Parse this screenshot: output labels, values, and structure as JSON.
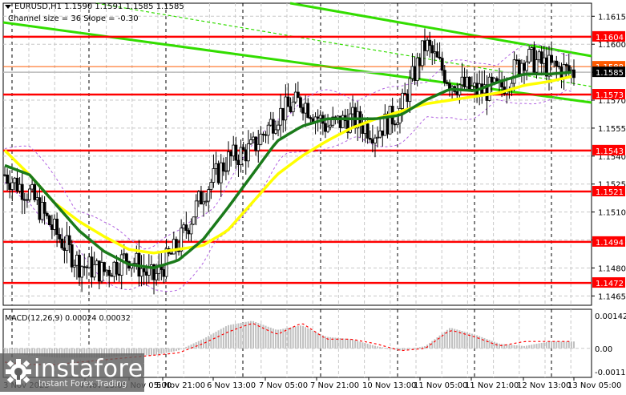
{
  "header": {
    "symbol_line": "EURUSD,H1  1.1590 1.1591 1.1585 1.1585",
    "channel_line": "Channel size = 36 Slope = -0.30"
  },
  "macd": {
    "label": "MACD(12,26,9) 0.00024 0.00032",
    "axis": [
      "0.00142",
      "0.00",
      "-0.00119"
    ]
  },
  "watermark": {
    "brand": "instaforex",
    "tagline": "Instant Forex Trading"
  },
  "colors": {
    "level": "#ff0000",
    "channel": "#33dd00",
    "ma_fast": "#1a7a1a",
    "ma_slow": "#ffff00",
    "envelope": "#b060e0",
    "macd_hist": "#c0c0c0",
    "macd_signal": "#ff0000",
    "current_price_bg": "#000000",
    "ask_line": "#ff5a00"
  },
  "chart_data": {
    "type": "candlestick",
    "title": "EURUSD,H1",
    "ohlc_header": {
      "open": 1.159,
      "high": 1.1591,
      "low": 1.1585,
      "close": 1.1585
    },
    "annotation": "Channel size = 36 Slope = -0.30",
    "xlabel": "",
    "ylabel": "",
    "ylim": [
      1.146,
      1.1622
    ],
    "x_tick_labels": [
      "3 Nov 2025",
      "4 Nov 13:00",
      "5 Nov 05:00",
      "5 Nov 21:00",
      "6 Nov 13:00",
      "7 Nov 05:00",
      "7 Nov 21:00",
      "10 Nov 13:00",
      "11 Nov 05:00",
      "11 Nov 21:00",
      "12 Nov 13:00",
      "13 Nov 05:00"
    ],
    "y_tick_labels": [
      "1.1615",
      "1.1600",
      "1.1585",
      "1.1570",
      "1.1555",
      "1.1540",
      "1.1525",
      "1.1510",
      "1.1495",
      "1.1480",
      "1.1465"
    ],
    "horizontal_levels": [
      1.1604,
      1.1573,
      1.1543,
      1.1521,
      1.1494,
      1.1472
    ],
    "price_tags": [
      {
        "label": "1.1604",
        "value": 1.1604,
        "color": "#ff0000"
      },
      {
        "label": "1.1588",
        "value": 1.1588,
        "color": "#ff5a00"
      },
      {
        "label": "1.1585",
        "value": 1.1585,
        "color": "#000000"
      },
      {
        "label": "1.1573",
        "value": 1.1573,
        "color": "#ff0000"
      },
      {
        "label": "1.1543",
        "value": 1.1543,
        "color": "#ff0000"
      },
      {
        "label": "1.1521",
        "value": 1.1521,
        "color": "#ff0000"
      },
      {
        "label": "1.1494",
        "value": 1.1494,
        "color": "#ff0000"
      },
      {
        "label": "1.1472",
        "value": 1.1472,
        "color": "#ff0000"
      }
    ],
    "current_price": 1.1585,
    "ask_price": 1.1588,
    "series": [
      {
        "name": "Close (approx, every ~12 bars)",
        "values": [
          1.153,
          1.152,
          1.15,
          1.1482,
          1.1478,
          1.1486,
          1.1474,
          1.1492,
          1.152,
          1.1538,
          1.1544,
          1.1562,
          1.157,
          1.1556,
          1.156,
          1.1553,
          1.1565,
          1.16,
          1.158,
          1.1575,
          1.1576,
          1.1593,
          1.1588,
          1.1585
        ]
      },
      {
        "name": "MA fast (green)",
        "values": [
          1.1535,
          1.153,
          1.1515,
          1.15,
          1.1489,
          1.1482,
          1.148,
          1.1484,
          1.1495,
          1.1512,
          1.153,
          1.1548,
          1.1556,
          1.156,
          1.156,
          1.156,
          1.1562,
          1.157,
          1.1576,
          1.1575,
          1.158,
          1.1584,
          1.1584,
          1.1585
        ]
      },
      {
        "name": "MA slow (yellow)",
        "values": [
          1.1543,
          1.153,
          1.1515,
          1.1505,
          1.1497,
          1.149,
          1.1488,
          1.149,
          1.1492,
          1.15,
          1.1515,
          1.153,
          1.154,
          1.1548,
          1.1555,
          1.156,
          1.1564,
          1.1568,
          1.157,
          1.1572,
          1.1574,
          1.1578,
          1.158,
          1.1583
        ]
      }
    ],
    "macd_subchart": {
      "ylim": [
        -0.00119,
        0.00142
      ],
      "histogram": [
        -0.0002,
        -0.0003,
        -0.0004,
        -0.0004,
        -0.0004,
        -0.0003,
        -0.0003,
        -0.0001,
        0.0004,
        0.001,
        0.0012,
        0.0008,
        0.001,
        0.0005,
        0.0004,
        0.0001,
        -0.0001,
        0.0001,
        0.0009,
        0.0006,
        0.0002,
        0.0001,
        0.0003,
        0.0003
      ],
      "signal": [
        -0.0006,
        -0.0007,
        -0.0007,
        -0.0006,
        -0.0005,
        -0.0004,
        -0.0003,
        -0.0002,
        0.0002,
        0.0007,
        0.0011,
        0.0006,
        0.0011,
        0.0004,
        0.0004,
        0.0002,
        -0.0001,
        0.0,
        0.0008,
        0.0005,
        0.0001,
        0.0003,
        0.0003,
        0.0003
      ]
    }
  }
}
